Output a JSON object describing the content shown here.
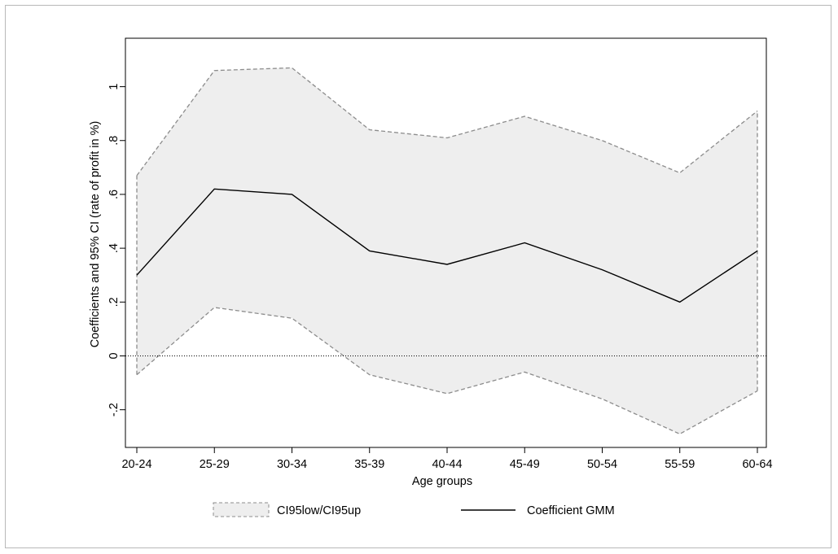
{
  "chart_data": {
    "type": "line",
    "title": "",
    "xlabel": "Age groups",
    "ylabel": "Coefficients and 95% CI (rate of profit in %)",
    "categories": [
      "20-24",
      "25-29",
      "30-34",
      "35-39",
      "40-44",
      "45-49",
      "50-54",
      "55-59",
      "60-64"
    ],
    "ylim": [
      -0.34,
      1.18
    ],
    "yticks": [
      -0.2,
      0,
      0.2,
      0.4,
      0.6,
      0.8,
      1
    ],
    "ytick_labels": [
      "-.2",
      "0",
      ".2",
      ".4",
      ".6",
      ".8",
      "1"
    ],
    "series": [
      {
        "name": "Coefficient GMM",
        "style": "solid",
        "color": "#000000",
        "values": [
          0.3,
          0.62,
          0.6,
          0.39,
          0.34,
          0.42,
          0.32,
          0.2,
          0.39
        ]
      }
    ],
    "band": {
      "name": "CI95low/CI95up",
      "fill": "#eeeeee",
      "edge_color": "#8c8c8c",
      "lower": [
        -0.07,
        0.18,
        0.14,
        -0.07,
        -0.14,
        -0.06,
        -0.16,
        -0.29,
        -0.13
      ],
      "upper": [
        0.67,
        1.06,
        1.07,
        0.84,
        0.81,
        0.89,
        0.8,
        0.68,
        0.91
      ]
    },
    "reference_line": {
      "y": 0,
      "style": "dotted"
    },
    "grid": false,
    "legend_position": "bottom"
  },
  "colors": {
    "band_fill": "#eeeeee",
    "band_edge": "#8c8c8c",
    "line": "#000000",
    "frame": "#b8b8b8"
  }
}
